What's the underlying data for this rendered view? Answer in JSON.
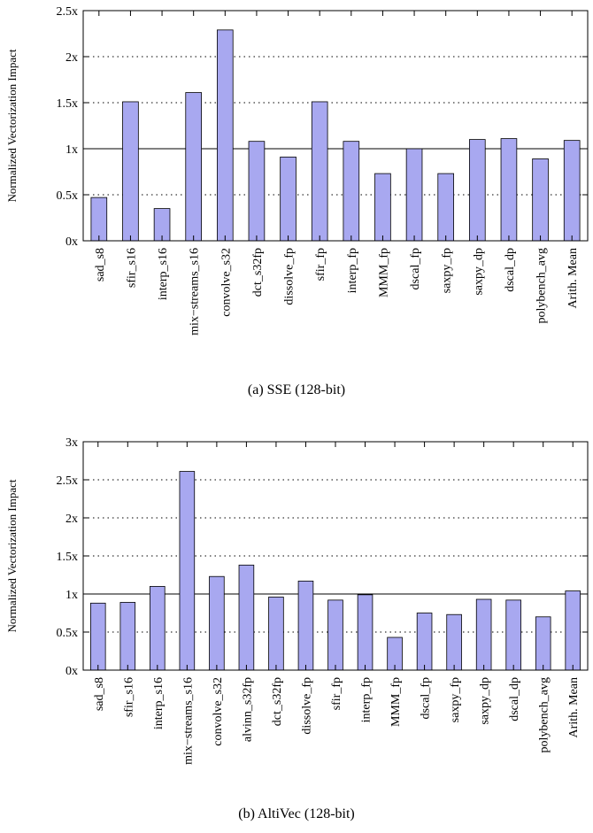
{
  "chart_data": [
    {
      "type": "bar",
      "caption": "(a) SSE (128-bit)",
      "ylabel": "Normalized Vectorization Impact",
      "ylim": [
        0,
        2.5
      ],
      "yticks": [
        0,
        0.5,
        1,
        1.5,
        2,
        2.5
      ],
      "ytick_labels": [
        "0x",
        "0.5x",
        "1x",
        "1.5x",
        "2x",
        "2.5x"
      ],
      "grid": "dotted horizontal",
      "reference_line": 1,
      "bar_color": "#a8a8f0",
      "categories": [
        "sad_s8",
        "sfir_s16",
        "interp_s16",
        "mix−streams_s16",
        "convolve_s32",
        "dct_s32fp",
        "dissolve_fp",
        "sfir_fp",
        "interp_fp",
        "MMM_fp",
        "dscal_fp",
        "saxpy_fp",
        "saxpy_dp",
        "dscal_dp",
        "polybench_avg",
        "Arith. Mean"
      ],
      "values": [
        0.47,
        1.51,
        0.35,
        1.61,
        2.29,
        1.08,
        0.91,
        1.51,
        1.08,
        0.73,
        1.0,
        0.73,
        1.1,
        1.11,
        0.89,
        1.09
      ]
    },
    {
      "type": "bar",
      "caption": "(b) AltiVec (128-bit)",
      "ylabel": "Normalized Vectorization Impact",
      "ylim": [
        0,
        3
      ],
      "yticks": [
        0,
        0.5,
        1,
        1.5,
        2,
        2.5,
        3
      ],
      "ytick_labels": [
        "0x",
        "0.5x",
        "1x",
        "1.5x",
        "2x",
        "2.5x",
        "3x"
      ],
      "grid": "dotted horizontal",
      "reference_line": 1,
      "bar_color": "#a8a8f0",
      "categories": [
        "sad_s8",
        "sfir_s16",
        "interp_s16",
        "mix−streams_s16",
        "convolve_s32",
        "alvinn_s32fp",
        "dct_s32fp",
        "dissolve_fp",
        "sfir_fp",
        "interp_fp",
        "MMM_fp",
        "dscal_fp",
        "saxpy_fp",
        "saxpy_dp",
        "dscal_dp",
        "polybench_avg",
        "Arith. Mean"
      ],
      "values": [
        0.88,
        0.89,
        1.1,
        2.61,
        1.23,
        1.38,
        0.96,
        1.17,
        0.92,
        0.99,
        0.43,
        0.75,
        0.73,
        0.93,
        0.92,
        0.7,
        1.04
      ]
    }
  ]
}
